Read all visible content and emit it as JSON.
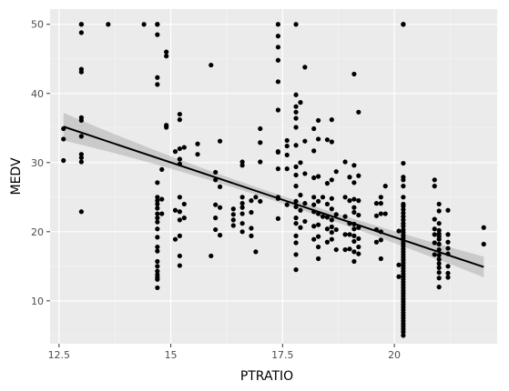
{
  "chart_data": {
    "type": "scatter",
    "title": "",
    "xlabel": "PTRATIO",
    "ylabel": "MEDV",
    "xlim": [
      12.3,
      22.3
    ],
    "ylim": [
      3.8,
      52.2
    ],
    "xticks": [
      12.5,
      15,
      17.5,
      20
    ],
    "xtick_labels": [
      "12.5",
      "15",
      "17.5",
      "20"
    ],
    "yticks": [
      10,
      20,
      30,
      40,
      50
    ],
    "ytick_labels": [
      "10",
      "20",
      "30",
      "40",
      "50"
    ],
    "grid": true,
    "legend": "none",
    "point_color": "#000000",
    "band_color": "#999999",
    "panel_color": "#ebebeb",
    "trend": {
      "method": "linear",
      "x": [
        12.6,
        22.0
      ],
      "y": [
        35.2,
        14.9
      ],
      "ci_half_width": [
        2.0,
        1.5
      ]
    },
    "points": [
      [
        12.6,
        30.3
      ],
      [
        12.6,
        33.4
      ],
      [
        12.6,
        34.9
      ],
      [
        13.0,
        50.0
      ],
      [
        13.0,
        50.0
      ],
      [
        13.0,
        48.8
      ],
      [
        13.0,
        43.5
      ],
      [
        13.0,
        43.1
      ],
      [
        13.0,
        36.5
      ],
      [
        13.0,
        36.1
      ],
      [
        13.0,
        33.8
      ],
      [
        13.0,
        31.2
      ],
      [
        13.0,
        30.7
      ],
      [
        13.0,
        30.1
      ],
      [
        13.0,
        22.9
      ],
      [
        13.6,
        50.0
      ],
      [
        14.4,
        50.0
      ],
      [
        14.7,
        50.0
      ],
      [
        14.7,
        50.0
      ],
      [
        14.7,
        48.5
      ],
      [
        14.7,
        42.3
      ],
      [
        14.7,
        41.3
      ],
      [
        14.7,
        27.1
      ],
      [
        14.7,
        25.0
      ],
      [
        14.7,
        24.5
      ],
      [
        14.7,
        24.0
      ],
      [
        14.7,
        23.4
      ],
      [
        14.7,
        22.6
      ],
      [
        14.7,
        22.0
      ],
      [
        14.7,
        21.4
      ],
      [
        14.7,
        20.4
      ],
      [
        14.7,
        19.2
      ],
      [
        14.7,
        17.8
      ],
      [
        14.7,
        17.2
      ],
      [
        14.7,
        15.7
      ],
      [
        14.7,
        15.0
      ],
      [
        14.7,
        14.3
      ],
      [
        14.7,
        13.8
      ],
      [
        14.7,
        13.4
      ],
      [
        14.7,
        13.1
      ],
      [
        14.7,
        11.9
      ],
      [
        14.8,
        29.0
      ],
      [
        14.8,
        24.7
      ],
      [
        14.8,
        22.6
      ],
      [
        14.9,
        46.0
      ],
      [
        14.9,
        45.4
      ],
      [
        14.9,
        35.4
      ],
      [
        14.9,
        35.1
      ],
      [
        15.1,
        31.6
      ],
      [
        15.1,
        23.1
      ],
      [
        15.1,
        18.9
      ],
      [
        15.2,
        37.0
      ],
      [
        15.2,
        36.2
      ],
      [
        15.2,
        32.0
      ],
      [
        15.2,
        30.5
      ],
      [
        15.2,
        29.8
      ],
      [
        15.2,
        25.0
      ],
      [
        15.2,
        22.9
      ],
      [
        15.2,
        21.7
      ],
      [
        15.2,
        19.4
      ],
      [
        15.2,
        16.5
      ],
      [
        15.2,
        15.1
      ],
      [
        15.3,
        32.2
      ],
      [
        15.3,
        24.0
      ],
      [
        15.3,
        22.0
      ],
      [
        15.6,
        32.7
      ],
      [
        15.6,
        31.2
      ],
      [
        15.9,
        44.1
      ],
      [
        15.9,
        16.5
      ],
      [
        16.0,
        28.6
      ],
      [
        16.0,
        27.5
      ],
      [
        16.0,
        23.9
      ],
      [
        16.0,
        22.0
      ],
      [
        16.0,
        20.3
      ],
      [
        16.1,
        33.1
      ],
      [
        16.1,
        26.5
      ],
      [
        16.1,
        23.5
      ],
      [
        16.1,
        19.5
      ],
      [
        16.4,
        23.3
      ],
      [
        16.4,
        22.5
      ],
      [
        16.4,
        21.7
      ],
      [
        16.4,
        20.9
      ],
      [
        16.6,
        30.1
      ],
      [
        16.6,
        29.6
      ],
      [
        16.6,
        25.0
      ],
      [
        16.6,
        24.1
      ],
      [
        16.6,
        23.5
      ],
      [
        16.6,
        22.6
      ],
      [
        16.6,
        21.2
      ],
      [
        16.6,
        20.0
      ],
      [
        16.8,
        24.5
      ],
      [
        16.8,
        22.8
      ],
      [
        16.8,
        20.5
      ],
      [
        16.8,
        19.4
      ],
      [
        16.9,
        25.0
      ],
      [
        16.9,
        17.1
      ],
      [
        17.0,
        34.9
      ],
      [
        17.0,
        32.9
      ],
      [
        17.0,
        30.1
      ],
      [
        17.0,
        24.4
      ],
      [
        17.4,
        50.0
      ],
      [
        17.4,
        48.3
      ],
      [
        17.4,
        46.7
      ],
      [
        17.4,
        44.8
      ],
      [
        17.4,
        41.7
      ],
      [
        17.4,
        37.6
      ],
      [
        17.4,
        31.6
      ],
      [
        17.4,
        31.5
      ],
      [
        17.4,
        29.1
      ],
      [
        17.4,
        25.0
      ],
      [
        17.4,
        24.8
      ],
      [
        17.4,
        21.9
      ],
      [
        17.6,
        33.2
      ],
      [
        17.6,
        32.4
      ],
      [
        17.6,
        31.1
      ],
      [
        17.6,
        29.1
      ],
      [
        17.6,
        23.9
      ],
      [
        17.8,
        50.0
      ],
      [
        17.8,
        39.8
      ],
      [
        17.8,
        38.1
      ],
      [
        17.8,
        37.3
      ],
      [
        17.8,
        36.4
      ],
      [
        17.8,
        35.1
      ],
      [
        17.8,
        32.5
      ],
      [
        17.8,
        29.4
      ],
      [
        17.8,
        28.2
      ],
      [
        17.8,
        26.6
      ],
      [
        17.8,
        24.4
      ],
      [
        17.8,
        23.6
      ],
      [
        17.8,
        22.0
      ],
      [
        17.8,
        21.2
      ],
      [
        17.8,
        19.4
      ],
      [
        17.8,
        18.4
      ],
      [
        17.8,
        16.7
      ],
      [
        17.8,
        14.5
      ],
      [
        17.9,
        38.7
      ],
      [
        17.9,
        30.0
      ],
      [
        17.9,
        25.3
      ],
      [
        17.9,
        23.1
      ],
      [
        17.9,
        20.6
      ],
      [
        18.0,
        43.8
      ],
      [
        18.0,
        33.1
      ],
      [
        18.0,
        28.4
      ],
      [
        18.0,
        24.1
      ],
      [
        18.0,
        21.5
      ],
      [
        18.2,
        34.9
      ],
      [
        18.2,
        31.7
      ],
      [
        18.2,
        27.8
      ],
      [
        18.2,
        25.0
      ],
      [
        18.2,
        23.9
      ],
      [
        18.2,
        22.9
      ],
      [
        18.2,
        20.8
      ],
      [
        18.2,
        18.9
      ],
      [
        18.3,
        36.1
      ],
      [
        18.3,
        33.4
      ],
      [
        18.3,
        28.0
      ],
      [
        18.3,
        24.4
      ],
      [
        18.3,
        22.6
      ],
      [
        18.3,
        21.0
      ],
      [
        18.3,
        19.3
      ],
      [
        18.3,
        17.8
      ],
      [
        18.3,
        16.1
      ],
      [
        18.4,
        25.0
      ],
      [
        18.4,
        22.2
      ],
      [
        18.5,
        33.3
      ],
      [
        18.5,
        27.0
      ],
      [
        18.5,
        24.0
      ],
      [
        18.5,
        22.1
      ],
      [
        18.5,
        20.4
      ],
      [
        18.5,
        18.5
      ],
      [
        18.6,
        36.2
      ],
      [
        18.6,
        33.0
      ],
      [
        18.6,
        27.5
      ],
      [
        18.6,
        24.8
      ],
      [
        18.6,
        23.3
      ],
      [
        18.6,
        21.7
      ],
      [
        18.6,
        20.7
      ],
      [
        18.6,
        19.9
      ],
      [
        18.6,
        18.9
      ],
      [
        18.7,
        28.7
      ],
      [
        18.7,
        22.5
      ],
      [
        18.7,
        20.3
      ],
      [
        18.7,
        17.4
      ],
      [
        18.9,
        30.1
      ],
      [
        18.9,
        25.0
      ],
      [
        18.9,
        22.2
      ],
      [
        18.9,
        19.6
      ],
      [
        18.9,
        17.4
      ],
      [
        19.0,
        27.9
      ],
      [
        19.0,
        24.5
      ],
      [
        19.0,
        21.2
      ],
      [
        19.0,
        19.6
      ],
      [
        19.0,
        17.5
      ],
      [
        19.1,
        42.8
      ],
      [
        19.1,
        29.6
      ],
      [
        19.1,
        27.1
      ],
      [
        19.1,
        24.7
      ],
      [
        19.1,
        23.5
      ],
      [
        19.1,
        22.8
      ],
      [
        19.1,
        21.1
      ],
      [
        19.1,
        20.4
      ],
      [
        19.1,
        19.4
      ],
      [
        19.1,
        18.6
      ],
      [
        19.1,
        17.1
      ],
      [
        19.1,
        15.7
      ],
      [
        19.2,
        37.3
      ],
      [
        19.2,
        28.1
      ],
      [
        19.2,
        24.5
      ],
      [
        19.2,
        22.4
      ],
      [
        19.2,
        20.6
      ],
      [
        19.2,
        19.0
      ],
      [
        19.2,
        17.8
      ],
      [
        19.2,
        16.8
      ],
      [
        19.6,
        24.1
      ],
      [
        19.6,
        22.3
      ],
      [
        19.6,
        20.3
      ],
      [
        19.6,
        18.5
      ],
      [
        19.7,
        25.0
      ],
      [
        19.7,
        24.1
      ],
      [
        19.7,
        22.6
      ],
      [
        19.7,
        20.0
      ],
      [
        19.7,
        18.8
      ],
      [
        19.7,
        16.1
      ],
      [
        19.8,
        26.6
      ],
      [
        19.8,
        22.6
      ],
      [
        20.1,
        20.1
      ],
      [
        20.1,
        15.2
      ],
      [
        20.1,
        13.5
      ],
      [
        20.2,
        50.0
      ],
      [
        20.2,
        50.0
      ],
      [
        20.2,
        50.0
      ],
      [
        20.2,
        29.9
      ],
      [
        20.2,
        27.9
      ],
      [
        20.2,
        27.5
      ],
      [
        20.2,
        26.6
      ],
      [
        20.2,
        25.0
      ],
      [
        20.2,
        24.0
      ],
      [
        20.2,
        23.7
      ],
      [
        20.2,
        23.2
      ],
      [
        20.2,
        22.7
      ],
      [
        20.2,
        22.2
      ],
      [
        20.2,
        21.7
      ],
      [
        20.2,
        21.2
      ],
      [
        20.2,
        20.8
      ],
      [
        20.2,
        20.3
      ],
      [
        20.2,
        19.9
      ],
      [
        20.2,
        19.5
      ],
      [
        20.2,
        19.1
      ],
      [
        20.2,
        18.7
      ],
      [
        20.2,
        18.3
      ],
      [
        20.2,
        17.9
      ],
      [
        20.2,
        17.5
      ],
      [
        20.2,
        17.1
      ],
      [
        20.2,
        16.7
      ],
      [
        20.2,
        16.3
      ],
      [
        20.2,
        15.9
      ],
      [
        20.2,
        15.5
      ],
      [
        20.2,
        15.1
      ],
      [
        20.2,
        14.7
      ],
      [
        20.2,
        14.3
      ],
      [
        20.2,
        13.9
      ],
      [
        20.2,
        13.5
      ],
      [
        20.2,
        13.1
      ],
      [
        20.2,
        12.7
      ],
      [
        20.2,
        12.3
      ],
      [
        20.2,
        11.9
      ],
      [
        20.2,
        11.5
      ],
      [
        20.2,
        11.1
      ],
      [
        20.2,
        10.7
      ],
      [
        20.2,
        10.3
      ],
      [
        20.2,
        9.9
      ],
      [
        20.2,
        9.5
      ],
      [
        20.2,
        9.1
      ],
      [
        20.2,
        8.7
      ],
      [
        20.2,
        8.3
      ],
      [
        20.2,
        7.9
      ],
      [
        20.2,
        7.5
      ],
      [
        20.2,
        7.1
      ],
      [
        20.2,
        6.7
      ],
      [
        20.2,
        6.3
      ],
      [
        20.2,
        5.9
      ],
      [
        20.2,
        5.5
      ],
      [
        20.2,
        5.0
      ],
      [
        20.9,
        27.5
      ],
      [
        20.9,
        26.6
      ],
      [
        20.9,
        21.8
      ],
      [
        20.9,
        20.4
      ],
      [
        20.9,
        19.6
      ],
      [
        20.9,
        18.4
      ],
      [
        20.9,
        16.7
      ],
      [
        21.0,
        24.0
      ],
      [
        21.0,
        23.0
      ],
      [
        21.0,
        21.2
      ],
      [
        21.0,
        20.2
      ],
      [
        21.0,
        19.7
      ],
      [
        21.0,
        19.3
      ],
      [
        21.0,
        18.9
      ],
      [
        21.0,
        18.2
      ],
      [
        21.0,
        17.4
      ],
      [
        21.0,
        16.6
      ],
      [
        21.0,
        16.0
      ],
      [
        21.0,
        15.4
      ],
      [
        21.0,
        14.8
      ],
      [
        21.0,
        14.1
      ],
      [
        21.0,
        13.3
      ],
      [
        21.0,
        12.0
      ],
      [
        21.2,
        23.1
      ],
      [
        21.2,
        19.6
      ],
      [
        21.2,
        18.5
      ],
      [
        21.2,
        17.6
      ],
      [
        21.2,
        16.8
      ],
      [
        21.2,
        15.0
      ],
      [
        21.2,
        14.0
      ],
      [
        21.2,
        13.4
      ],
      [
        22.0,
        20.6
      ],
      [
        22.0,
        18.2
      ]
    ]
  }
}
